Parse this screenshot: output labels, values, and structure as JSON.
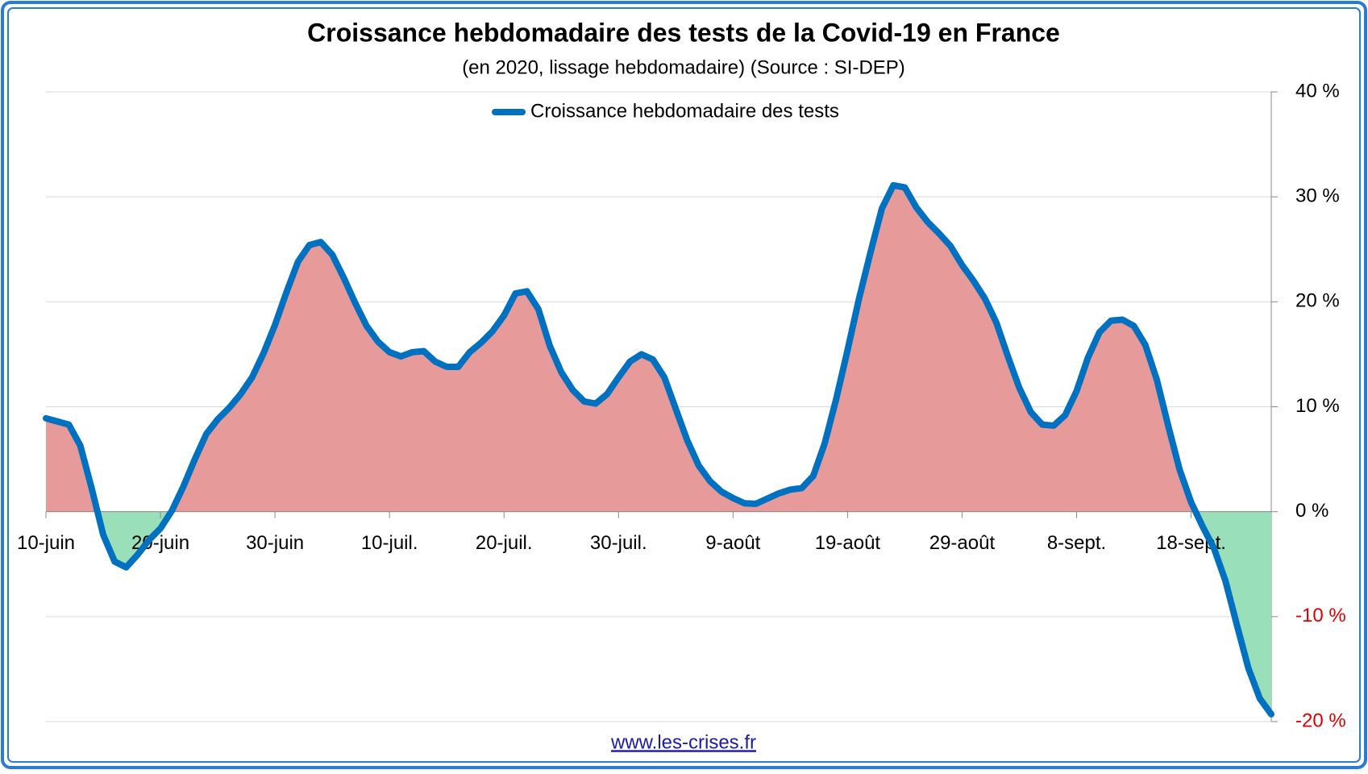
{
  "chart_data": {
    "type": "area-line",
    "title": "Croissance hebdomadaire des tests de la Covid-19 en France",
    "subtitle": "(en 2020, lissage hebdomadaire) (Source : SI-DEP)",
    "source_url": "www.les-crises.fr",
    "categories": [
      "10-juin",
      null,
      null,
      null,
      null,
      null,
      null,
      null,
      null,
      null,
      "20-juin",
      null,
      null,
      null,
      null,
      null,
      null,
      null,
      null,
      null,
      "30-juin",
      null,
      null,
      null,
      null,
      null,
      null,
      null,
      null,
      null,
      "10-juil.",
      null,
      null,
      null,
      null,
      null,
      null,
      null,
      null,
      null,
      "20-juil.",
      null,
      null,
      null,
      null,
      null,
      null,
      null,
      null,
      null,
      "30-juil.",
      null,
      null,
      null,
      null,
      null,
      null,
      null,
      null,
      null,
      "9-août",
      null,
      null,
      null,
      null,
      null,
      null,
      null,
      null,
      null,
      "19-août",
      null,
      null,
      null,
      null,
      null,
      null,
      null,
      null,
      null,
      "29-août",
      null,
      null,
      null,
      null,
      null,
      null,
      null,
      null,
      null,
      "8-sept.",
      null,
      null,
      null,
      null,
      null,
      null,
      null,
      null,
      null,
      "18-sept.",
      null,
      null,
      null,
      null,
      null,
      null,
      null
    ],
    "series": [
      {
        "name": "Croissance hebdomadaire des tests",
        "color": "#0070c0",
        "values": [
          8.9,
          8.6,
          8.3,
          6.3,
          2.2,
          -2.2,
          -4.75,
          -5.3,
          -4.1,
          -2.7,
          -1.6,
          0.1,
          2.4,
          5,
          7.4,
          8.8,
          9.9,
          11.2,
          12.8,
          15.1,
          17.8,
          20.9,
          23.8,
          25.4,
          25.7,
          24.5,
          22.3,
          19.9,
          17.7,
          16.2,
          15.2,
          14.8,
          15.2,
          15.3,
          14.3,
          13.8,
          13.8,
          15.2,
          16.1,
          17.2,
          18.7,
          20.8,
          21,
          19.3,
          15.8,
          13.3,
          11.6,
          10.5,
          10.3,
          11.2,
          12.8,
          14.3,
          15,
          14.5,
          12.8,
          9.8,
          6.8,
          4.4,
          2.9,
          1.9,
          1.3,
          0.8,
          0.75,
          1.25,
          1.75,
          2.1,
          2.25,
          3.4,
          6.5,
          10.7,
          15.4,
          20.3,
          24.7,
          28.9,
          31.1,
          30.9,
          29,
          27.6,
          26.5,
          25.3,
          23.5,
          22,
          20.3,
          18,
          14.8,
          11.8,
          9.5,
          8.3,
          8.2,
          9.2,
          11.5,
          14.7,
          17.1,
          18.2,
          18.3,
          17.7,
          15.9,
          12.6,
          8.2,
          4,
          0.9,
          -1.4,
          -3.5,
          -6.6,
          -10.8,
          -14.9,
          -17.8,
          -19.3
        ]
      }
    ],
    "positive_fill": "#e69a9a",
    "negative_fill": "#99dfb9",
    "negative_tick_color": "#e00000",
    "ylim": [
      -20,
      40
    ],
    "yticks": [
      {
        "value": -20,
        "label": "-20 %"
      },
      {
        "value": -10,
        "label": "-10 %"
      },
      {
        "value": 0,
        "label": "0 %"
      },
      {
        "value": 10,
        "label": "10 %"
      },
      {
        "value": 20,
        "label": "20 %"
      },
      {
        "value": 30,
        "label": "30 %"
      },
      {
        "value": 40,
        "label": "40 %"
      }
    ],
    "grid": true,
    "legend": "top"
  }
}
